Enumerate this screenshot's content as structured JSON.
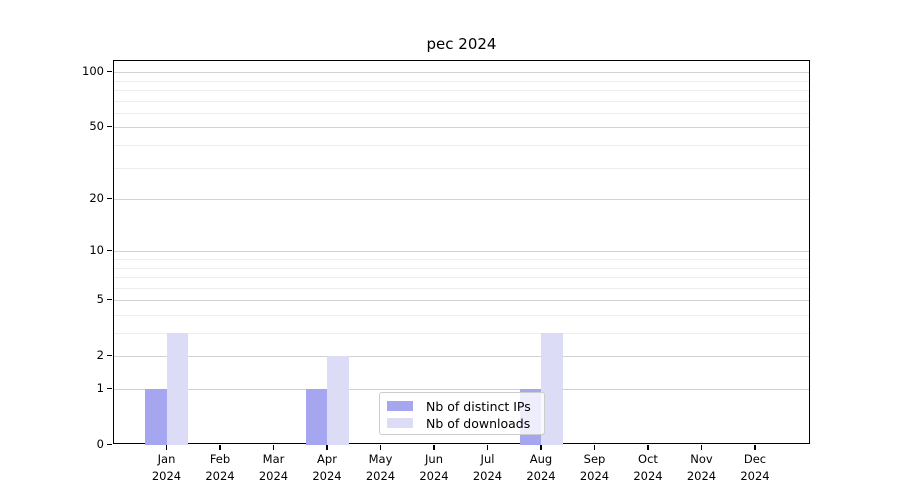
{
  "page": {
    "background": "#ffffff"
  },
  "chart_data": {
    "type": "bar",
    "title": "pec 2024",
    "categories": [
      "Jan",
      "Feb",
      "Mar",
      "Apr",
      "May",
      "Jun",
      "Jul",
      "Aug",
      "Sep",
      "Oct",
      "Nov",
      "Dec"
    ],
    "category_year": "2024",
    "series": [
      {
        "name": "Nb of distinct IPs",
        "color": "#a5a5f0",
        "values": [
          1,
          0,
          0,
          1,
          0,
          0,
          0,
          1,
          0,
          0,
          0,
          0
        ]
      },
      {
        "name": "Nb of downloads",
        "color": "#dcdcf7",
        "values": [
          3,
          0,
          0,
          2,
          0,
          0,
          0,
          3,
          0,
          0,
          0,
          0
        ]
      }
    ],
    "xlabel": "",
    "ylabel": "",
    "y_axis": {
      "scale": "log1p",
      "ticks": [
        0,
        1,
        2,
        5,
        10,
        20,
        50,
        100
      ],
      "minor_gridlines": [
        3,
        4,
        6,
        7,
        8,
        9,
        30,
        40,
        60,
        70,
        80,
        90
      ],
      "ymax": 115
    },
    "grid": true,
    "legend_position": "inside-bottom-center",
    "colors": {
      "major_grid": "#d2d2d2",
      "minor_grid": "#ededed",
      "axis": "#000000",
      "text": "#000000",
      "legend_border": "#cccccc"
    }
  }
}
